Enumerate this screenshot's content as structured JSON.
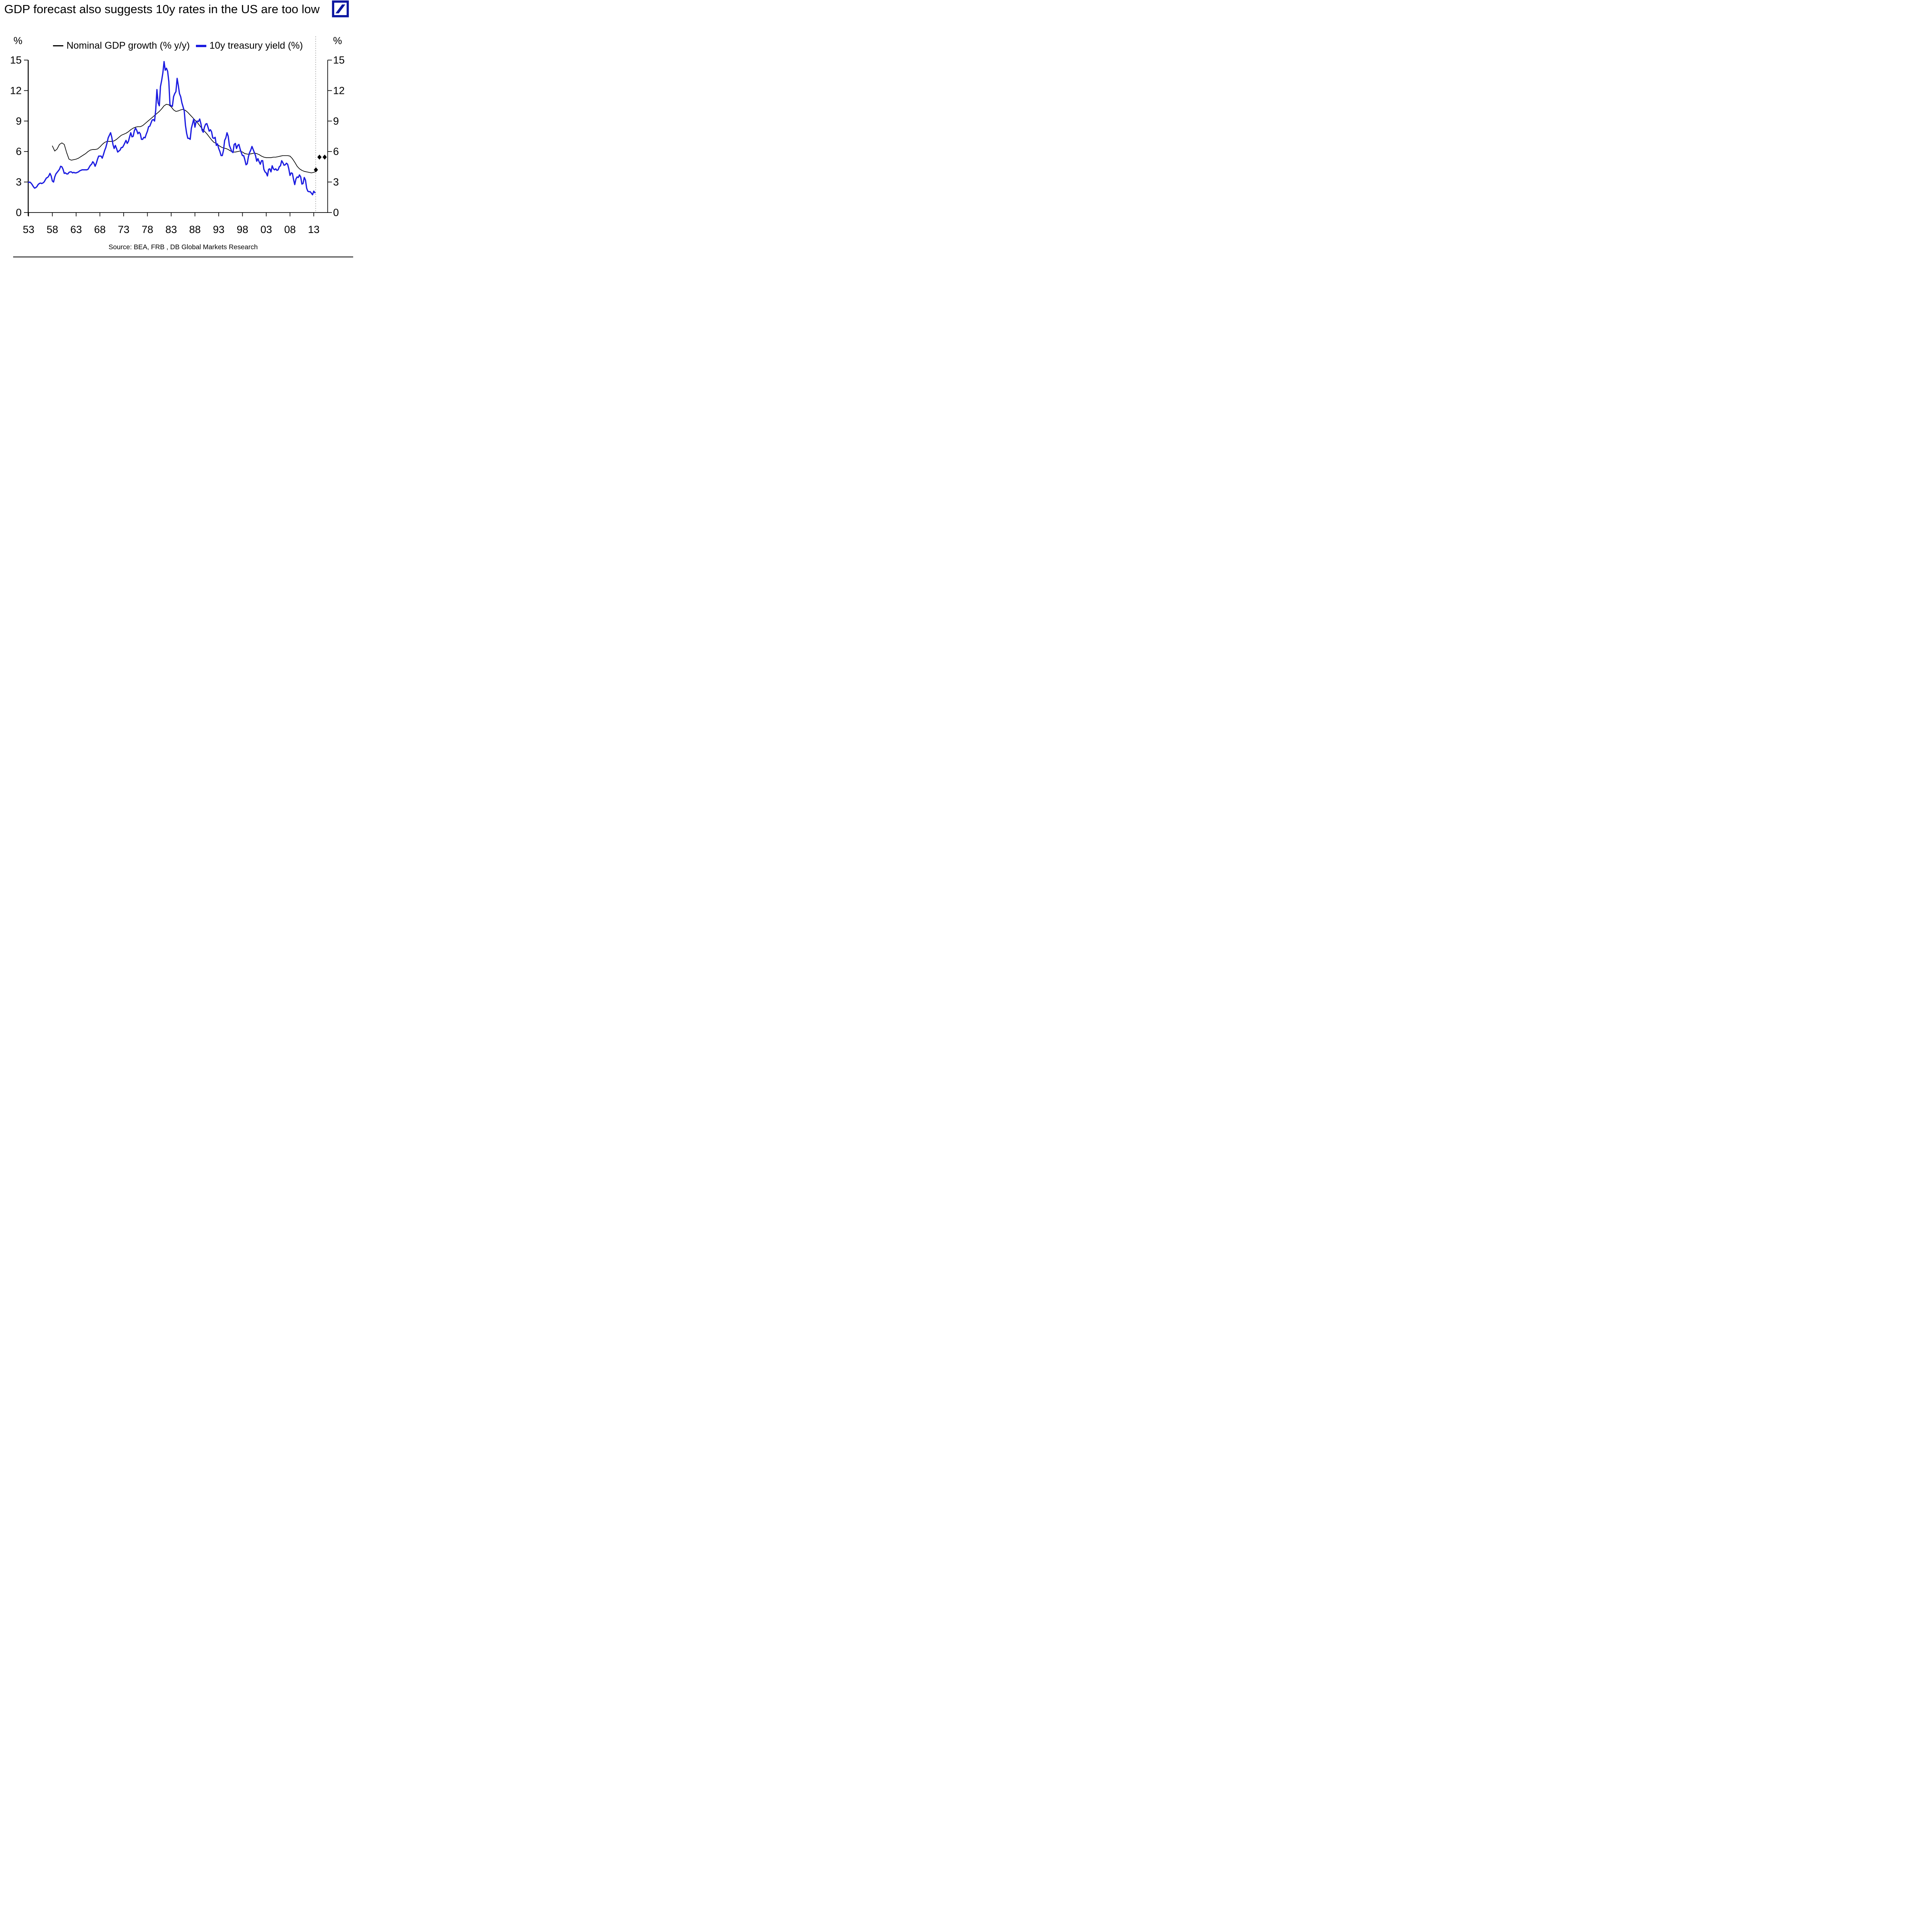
{
  "title": "GDP forecast also suggests 10y rates in the US are too low",
  "logo": {
    "name": "deutsche-bank-logo",
    "color": "#0b16a0"
  },
  "legend": [
    {
      "label": "Nominal GDP growth (% y/y)",
      "color": "#000000",
      "swatch_w": 27,
      "swatch_h": 3
    },
    {
      "label": "10y treasury yield (%)",
      "color": "#1b1be0",
      "swatch_w": 27,
      "swatch_h": 6
    }
  ],
  "axes": {
    "left_unit": "%",
    "right_unit": "%"
  },
  "source": "Source: BEA, FRB , DB Global Markets Research",
  "chart_data": {
    "type": "line",
    "title": "",
    "xlabel": "",
    "ylabel": "%",
    "x_axis": {
      "range": [
        1952.9,
        2016.2
      ],
      "ticks": [
        1953,
        1958,
        1963,
        1968,
        1973,
        1978,
        1983,
        1988,
        1993,
        1998,
        2003,
        2008,
        2013
      ],
      "tick_labels": [
        "53",
        "58",
        "63",
        "68",
        "73",
        "78",
        "83",
        "88",
        "93",
        "98",
        "03",
        "08",
        "13"
      ]
    },
    "y_axis": {
      "range": [
        0,
        15
      ],
      "ticks": [
        0,
        3,
        6,
        9,
        12,
        15
      ],
      "mirrored_right": true
    },
    "grid": false,
    "legend_position": "top-center",
    "series": [
      {
        "name": "Nominal GDP growth (% y/y)",
        "color": "#000000",
        "stroke_width": 1.7,
        "x_start": 1958.0,
        "x_step": 0.5,
        "values": [
          6.55,
          6.05,
          6.25,
          6.7,
          6.85,
          6.7,
          5.9,
          5.25,
          5.15,
          5.2,
          5.25,
          5.35,
          5.5,
          5.65,
          5.8,
          6.0,
          6.15,
          6.2,
          6.2,
          6.25,
          6.45,
          6.7,
          6.9,
          7.0,
          7.0,
          7.0,
          7.05,
          7.2,
          7.4,
          7.6,
          7.7,
          7.8,
          7.95,
          8.15,
          8.3,
          8.4,
          8.45,
          8.45,
          8.55,
          8.75,
          8.95,
          9.15,
          9.35,
          9.55,
          9.75,
          9.95,
          10.2,
          10.5,
          10.65,
          10.6,
          10.4,
          10.1,
          9.95,
          10.0,
          10.1,
          10.15,
          10.05,
          9.85,
          9.6,
          9.35,
          9.1,
          8.85,
          8.55,
          8.25,
          8.0,
          7.75,
          7.45,
          7.15,
          6.9,
          6.8,
          6.6,
          6.45,
          6.35,
          6.3,
          6.2,
          6.05,
          5.95,
          5.95,
          6.0,
          6.05,
          5.95,
          5.8,
          5.75,
          5.75,
          5.8,
          5.85,
          5.8,
          5.7,
          5.55,
          5.45,
          5.4,
          5.4,
          5.4,
          5.45,
          5.45,
          5.5,
          5.55,
          5.6,
          5.6,
          5.6,
          5.55,
          5.3,
          4.95,
          4.55,
          4.3,
          4.15,
          4.05,
          4.0,
          3.95,
          3.9,
          3.95,
          4.05
        ]
      },
      {
        "name": "10y treasury yield (%)",
        "color": "#1b1be0",
        "stroke_width": 3.2,
        "x_start": 1953.0,
        "x_step": 0.25,
        "values": [
          2.95,
          3.0,
          2.9,
          2.75,
          2.55,
          2.4,
          2.45,
          2.55,
          2.75,
          2.85,
          2.9,
          2.85,
          2.9,
          3.0,
          3.2,
          3.4,
          3.45,
          3.6,
          3.85,
          3.6,
          3.1,
          3.0,
          3.5,
          3.8,
          3.95,
          4.1,
          4.25,
          4.55,
          4.5,
          4.25,
          3.85,
          3.9,
          3.8,
          3.8,
          3.95,
          4.0,
          4.0,
          3.9,
          3.95,
          3.9,
          3.9,
          3.95,
          4.0,
          4.1,
          4.15,
          4.2,
          4.2,
          4.2,
          4.2,
          4.2,
          4.25,
          4.45,
          4.65,
          4.75,
          5.0,
          4.85,
          4.55,
          4.85,
          5.25,
          5.55,
          5.55,
          5.55,
          5.35,
          5.7,
          6.1,
          6.4,
          6.85,
          7.35,
          7.6,
          7.85,
          7.4,
          6.7,
          6.3,
          6.6,
          6.3,
          5.95,
          6.05,
          6.15,
          6.4,
          6.4,
          6.6,
          6.85,
          7.1,
          6.8,
          7.0,
          7.45,
          7.85,
          7.45,
          7.5,
          8.05,
          8.3,
          8.1,
          7.75,
          7.9,
          7.75,
          7.2,
          7.2,
          7.4,
          7.35,
          7.7,
          8.0,
          8.45,
          8.5,
          8.8,
          9.1,
          9.15,
          9.0,
          10.1,
          12.1,
          10.8,
          10.5,
          12.4,
          13.0,
          13.75,
          14.85,
          14.0,
          14.2,
          13.9,
          12.9,
          10.6,
          10.5,
          10.45,
          11.4,
          11.7,
          11.9,
          13.2,
          12.5,
          11.7,
          11.4,
          10.8,
          10.4,
          10.0,
          8.6,
          7.8,
          7.3,
          7.3,
          7.2,
          8.3,
          8.75,
          9.2,
          8.4,
          8.95,
          9.0,
          8.95,
          9.2,
          8.75,
          8.1,
          7.9,
          8.4,
          8.7,
          8.75,
          8.4,
          8.0,
          8.15,
          7.95,
          7.35,
          7.3,
          7.4,
          6.6,
          6.75,
          6.3,
          6.0,
          5.6,
          5.6,
          6.1,
          7.1,
          7.35,
          7.85,
          7.5,
          6.6,
          6.3,
          6.0,
          5.9,
          6.7,
          6.8,
          6.3,
          6.6,
          6.7,
          6.25,
          5.9,
          5.6,
          5.6,
          5.2,
          4.7,
          4.8,
          5.5,
          5.9,
          6.15,
          6.5,
          6.2,
          5.9,
          5.6,
          5.05,
          5.3,
          5.0,
          4.75,
          5.1,
          5.1,
          4.25,
          4.0,
          3.9,
          3.6,
          4.25,
          4.3,
          4.0,
          4.6,
          4.3,
          4.2,
          4.3,
          4.15,
          4.2,
          4.5,
          4.6,
          5.1,
          4.9,
          4.65,
          4.7,
          4.85,
          4.75,
          4.3,
          3.65,
          3.9,
          3.85,
          3.25,
          2.75,
          3.3,
          3.5,
          3.45,
          3.7,
          3.5,
          2.8,
          2.85,
          3.45,
          3.2,
          2.4,
          2.1,
          2.05,
          2.05,
          1.9,
          1.75,
          2.1,
          1.95
        ]
      }
    ],
    "forecast": {
      "divider_x": 2013.4,
      "divider_color": "#b5b5b5",
      "marker": "diamond",
      "marker_color": "#000000",
      "points": [
        {
          "x": 2013.45,
          "y": 4.2
        },
        {
          "x": 2014.2,
          "y": 5.45
        },
        {
          "x": 2015.3,
          "y": 5.45
        }
      ]
    }
  }
}
